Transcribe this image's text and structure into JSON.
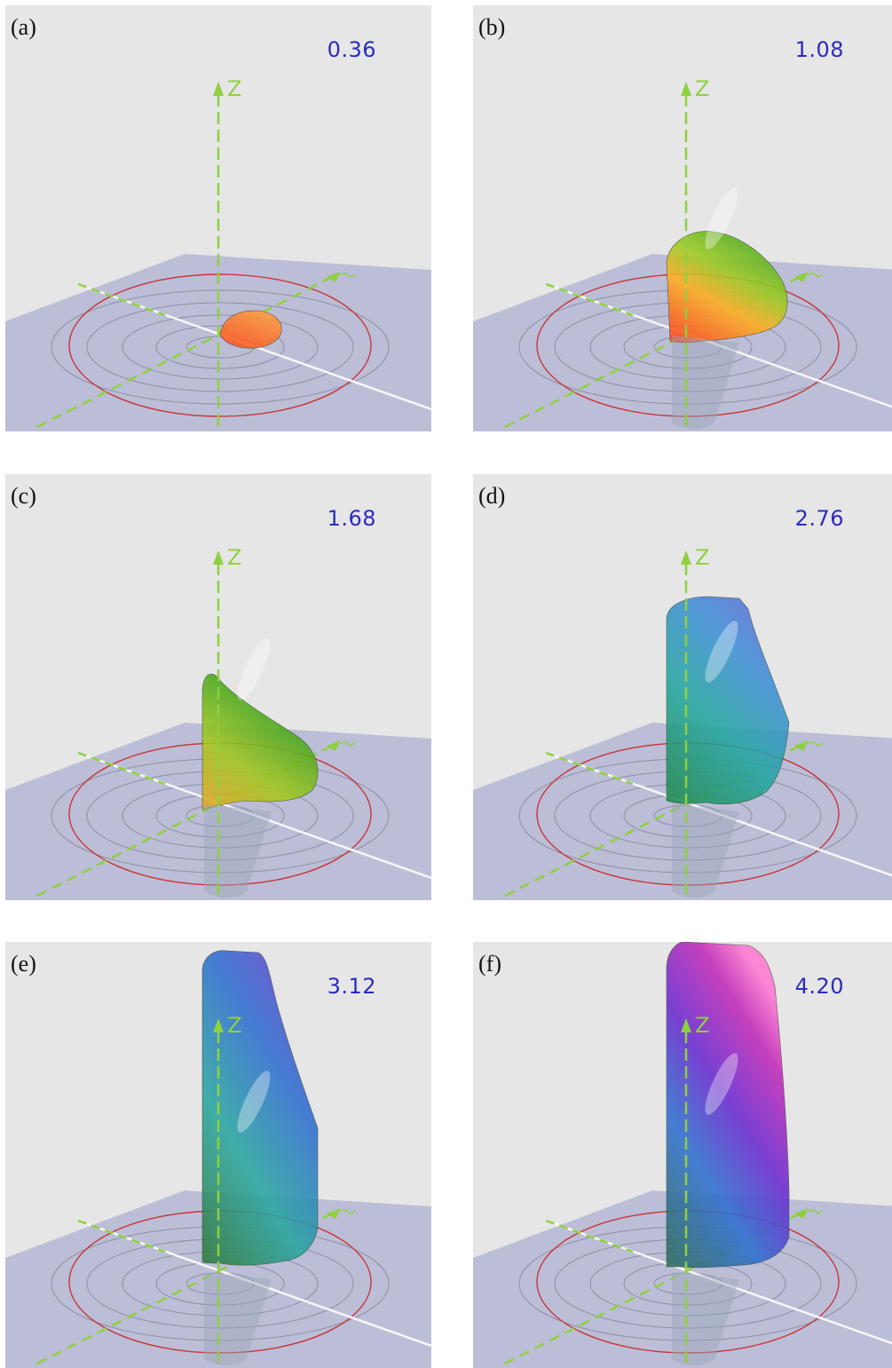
{
  "axis_label": "Z",
  "panels": [
    {
      "label": "(a)",
      "value": "0.36",
      "stage": 0
    },
    {
      "label": "(b)",
      "value": "1.08",
      "stage": 1
    },
    {
      "label": "(c)",
      "value": "1.68",
      "stage": 2
    },
    {
      "label": "(d)",
      "value": "2.76",
      "stage": 3
    },
    {
      "label": "(e)",
      "value": "3.12",
      "stage": 4
    },
    {
      "label": "(f)",
      "value": "4.20",
      "stage": 5
    }
  ]
}
